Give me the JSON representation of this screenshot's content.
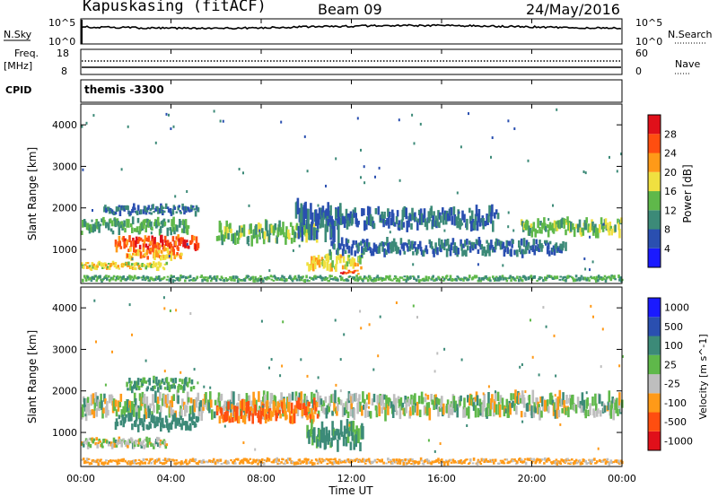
{
  "header": {
    "station": "Kapuskasing (fitACF)",
    "beam": "Beam 09",
    "date": "24/May/2016"
  },
  "aux": {
    "nsky_label": "N.Sky",
    "nsky_top": "10^5",
    "nsky_bottom": "10^0",
    "nsearch_label": "N.Search",
    "nsearch_top": "10^5",
    "nsearch_bottom": "10^0",
    "freq_label": "Freq.",
    "freq_unit": "[MHz]",
    "freq_top": "18",
    "freq_bottom": "8",
    "nave_label": "Nave",
    "nave_top": "60",
    "nave_bottom": "0",
    "cpid_label": "CPID",
    "cpid_value": "themis -3300"
  },
  "axes": {
    "ylabel": "Slant Range [km]",
    "xlabel": "Time UT",
    "xticks": [
      "00:00",
      "04:00",
      "08:00",
      "12:00",
      "16:00",
      "20:00",
      "00:00"
    ],
    "yticks": [
      "1000",
      "2000",
      "3000",
      "4000"
    ]
  },
  "colors": {
    "power": [
      "#1a1aff",
      "#2a4fb0",
      "#3c8a78",
      "#5fb84a",
      "#f0e040",
      "#ff9a18",
      "#ff4e10",
      "#e0101a"
    ],
    "velocity": [
      "#1a1aff",
      "#2a4fb0",
      "#3c8a78",
      "#5fb84a",
      "#bebebe",
      "#ff9a18",
      "#ff4e10",
      "#e0101a"
    ]
  },
  "power_bar": {
    "label": "Power [dB]",
    "ticks": [
      "4",
      "8",
      "12",
      "16",
      "20",
      "24",
      "28"
    ]
  },
  "velocity_bar": {
    "label": "Velocity [m s^-1]",
    "ticks": [
      "1000",
      "500",
      "100",
      "25",
      "-25",
      "-100",
      "-500",
      "-1000"
    ]
  },
  "chart_data": [
    {
      "type": "heatmap",
      "title": "Power",
      "xlabel": "Time UT",
      "ylabel": "Slant Range [km]",
      "xlim": [
        0,
        24
      ],
      "ylim": [
        180,
        4500
      ],
      "color_scale": {
        "label": "Power [dB]",
        "range": [
          0,
          32
        ]
      },
      "echo_bands": [
        {
          "t_start": 0.0,
          "t_end": 4.8,
          "range_center": 1550,
          "range_width": 300,
          "power_db": 12
        },
        {
          "t_start": 1.0,
          "t_end": 5.2,
          "range_center": 1950,
          "range_width": 200,
          "power_db": 8
        },
        {
          "t_start": 1.5,
          "t_end": 5.2,
          "range_center": 1150,
          "range_width": 260,
          "power_db": 26
        },
        {
          "t_start": 2.0,
          "t_end": 4.5,
          "range_center": 900,
          "range_width": 240,
          "power_db": 22
        },
        {
          "t_start": 0.0,
          "t_end": 3.8,
          "range_center": 600,
          "range_width": 150,
          "power_db": 18
        },
        {
          "t_start": 6.0,
          "t_end": 10.5,
          "range_center": 1400,
          "range_width": 400,
          "power_db": 14
        },
        {
          "t_start": 9.5,
          "t_end": 11.5,
          "range_center": 1700,
          "range_width": 700,
          "power_db": 8
        },
        {
          "t_start": 10.0,
          "t_end": 12.5,
          "range_center": 700,
          "range_width": 300,
          "power_db": 18
        },
        {
          "t_start": 11.5,
          "t_end": 12.3,
          "range_center": 450,
          "range_width": 80,
          "power_db": 26
        },
        {
          "t_start": 10.5,
          "t_end": 18.5,
          "range_center": 1750,
          "range_width": 400,
          "power_db": 8
        },
        {
          "t_start": 11.0,
          "t_end": 21.5,
          "range_center": 1050,
          "range_width": 300,
          "power_db": 8
        },
        {
          "t_start": 19.5,
          "t_end": 24.0,
          "range_center": 1550,
          "range_width": 350,
          "power_db": 14
        },
        {
          "t_start": 0.0,
          "t_end": 24.0,
          "range_center": 300,
          "range_width": 120,
          "power_db": 12
        }
      ]
    },
    {
      "type": "heatmap",
      "title": "Velocity",
      "xlabel": "Time UT",
      "ylabel": "Slant Range [km]",
      "xlim": [
        0,
        24
      ],
      "ylim": [
        180,
        4500
      ],
      "color_scale": {
        "label": "Velocity [m s^-1]",
        "range": [
          -1000,
          1000
        ]
      },
      "echo_bands": [
        {
          "t_start": 0.0,
          "t_end": 24.0,
          "range_center": 1650,
          "range_width": 450,
          "velocity": 0
        },
        {
          "t_start": 0.0,
          "t_end": 3.8,
          "range_center": 750,
          "range_width": 200,
          "velocity": 0
        },
        {
          "t_start": 1.5,
          "t_end": 5.2,
          "range_center": 1250,
          "range_width": 300,
          "velocity": 150
        },
        {
          "t_start": 2.0,
          "t_end": 5.0,
          "range_center": 2150,
          "range_width": 250,
          "velocity": 80
        },
        {
          "t_start": 6.0,
          "t_end": 10.5,
          "range_center": 1500,
          "range_width": 400,
          "velocity": -300
        },
        {
          "t_start": 10.0,
          "t_end": 12.5,
          "range_center": 900,
          "range_width": 500,
          "velocity": 100
        },
        {
          "t_start": 0.0,
          "t_end": 24.0,
          "range_center": 300,
          "range_width": 120,
          "velocity": -100
        }
      ]
    }
  ]
}
